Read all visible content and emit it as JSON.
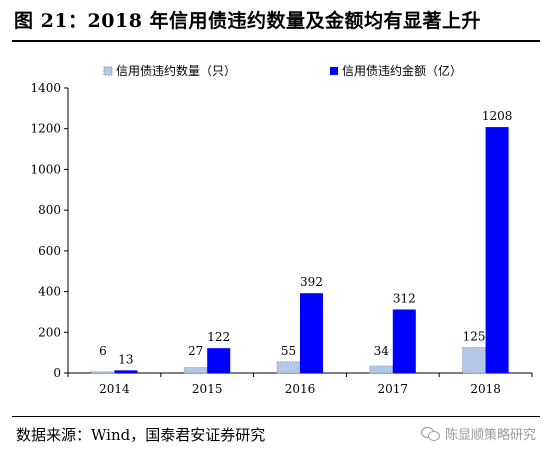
{
  "title": "图 21：2018 年信用债违约数量及金额均有显著上升",
  "source": "数据来源：Wind，国泰君安证券研究",
  "watermark": "陈显顺策略研究",
  "colors": {
    "count_fill": "#b4c7e7",
    "count_stroke": "#8aa0c8",
    "amount_fill": "#0000ff"
  },
  "chart_data": {
    "type": "bar",
    "categories": [
      "2014",
      "2015",
      "2016",
      "2017",
      "2018"
    ],
    "series": [
      {
        "name": "信用债违约数量（只）",
        "values": [
          6,
          27,
          55,
          34,
          125
        ],
        "labels": [
          "6",
          "27",
          "55",
          "34",
          "125"
        ]
      },
      {
        "name": "信用债违约金额（亿）",
        "values": [
          13,
          122,
          392,
          312,
          1208
        ],
        "labels": [
          "13",
          "122",
          "392",
          "312",
          "1208"
        ]
      }
    ],
    "ylim": [
      0,
      1400
    ],
    "yticks": [
      "0",
      "200",
      "400",
      "600",
      "800",
      "1000",
      "1200",
      "1400"
    ],
    "legend": "top-left",
    "grid": false
  }
}
